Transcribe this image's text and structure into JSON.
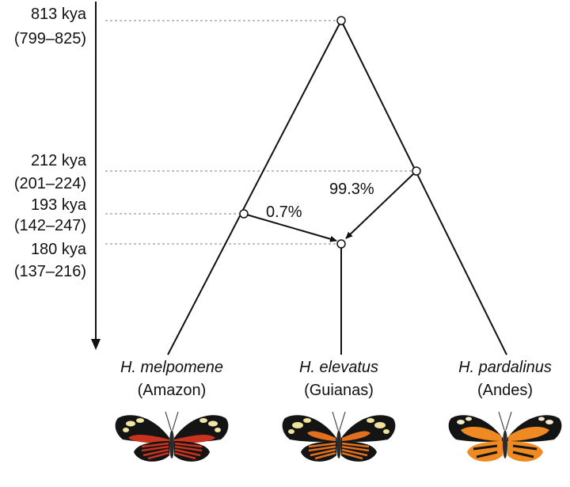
{
  "time_axis": {
    "events": [
      {
        "age": "813 kya",
        "interval": "(799–825)"
      },
      {
        "age": "212 kya",
        "interval": "(201–224)"
      },
      {
        "age": "193 kya",
        "interval": "(142–247)"
      },
      {
        "age": "180 kya",
        "interval": "(137–216)"
      }
    ]
  },
  "admixture": {
    "from_melpomene": "0.7%",
    "from_pardalinus": "99.3%"
  },
  "taxa": [
    {
      "species": "H. melpomene",
      "region": "(Amazon)",
      "image": "butterfly-melpomene"
    },
    {
      "species": "H. elevatus",
      "region": "(Guianas)",
      "image": "butterfly-elevatus"
    },
    {
      "species": "H. pardalinus",
      "region": "(Andes)",
      "image": "butterfly-pardalinus"
    }
  ],
  "colors": {
    "line": "#111111",
    "dotted": "#9a9a9a",
    "wing_black": "#141414",
    "melpomene_red": "#c7331e",
    "elevatus_orange": "#e0701f",
    "pardalinus_orange": "#ef8a22",
    "yellow_spot": "#f2e6a6"
  }
}
